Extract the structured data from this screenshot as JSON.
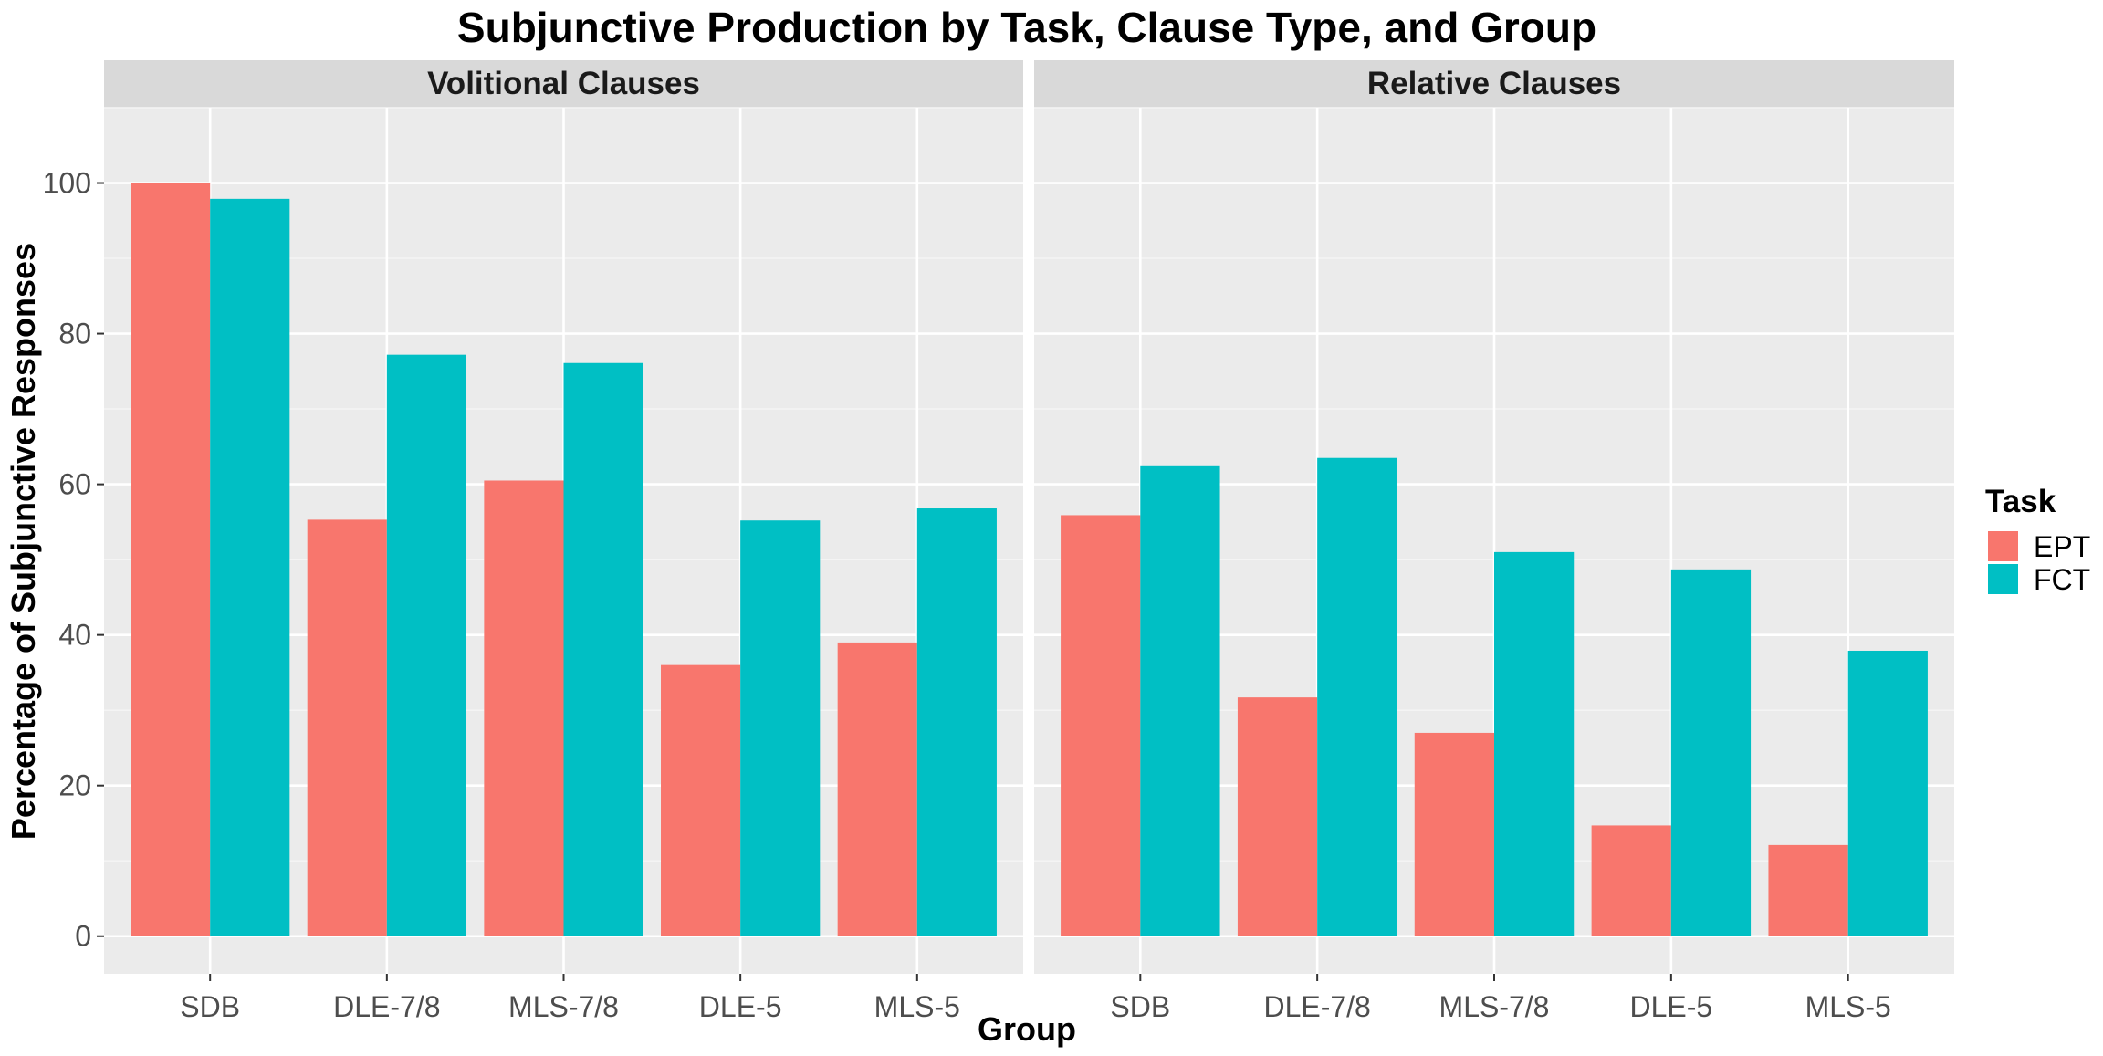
{
  "chart_data": {
    "type": "bar",
    "title": "Subjunctive Production by Task, Clause Type, and Group",
    "xlabel": "Group",
    "ylabel": "Percentage of Subjunctive Responses",
    "ylim": [
      -5,
      110
    ],
    "yticks": [
      0,
      20,
      40,
      60,
      80,
      100
    ],
    "grid": true,
    "legend": {
      "title": "Task",
      "placement": "right",
      "entries": [
        "EPT",
        "FCT"
      ]
    },
    "categories": [
      "SDB",
      "DLE-7/8",
      "MLS-7/8",
      "DLE-5",
      "MLS-5"
    ],
    "colors": {
      "EPT": "#F8766D",
      "FCT": "#00BFC4"
    },
    "panels": [
      {
        "label": "Volitional Clauses",
        "series": [
          {
            "name": "EPT",
            "values": [
              100,
              55.3,
              60.5,
              36,
              39
            ]
          },
          {
            "name": "FCT",
            "values": [
              97.9,
              77.2,
              76.1,
              55.2,
              56.8
            ]
          }
        ]
      },
      {
        "label": "Relative Clauses",
        "series": [
          {
            "name": "EPT",
            "values": [
              55.9,
              31.7,
              27,
              14.7,
              12.1
            ]
          },
          {
            "name": "FCT",
            "values": [
              62.4,
              63.5,
              51,
              48.7,
              37.9
            ]
          }
        ]
      }
    ]
  }
}
